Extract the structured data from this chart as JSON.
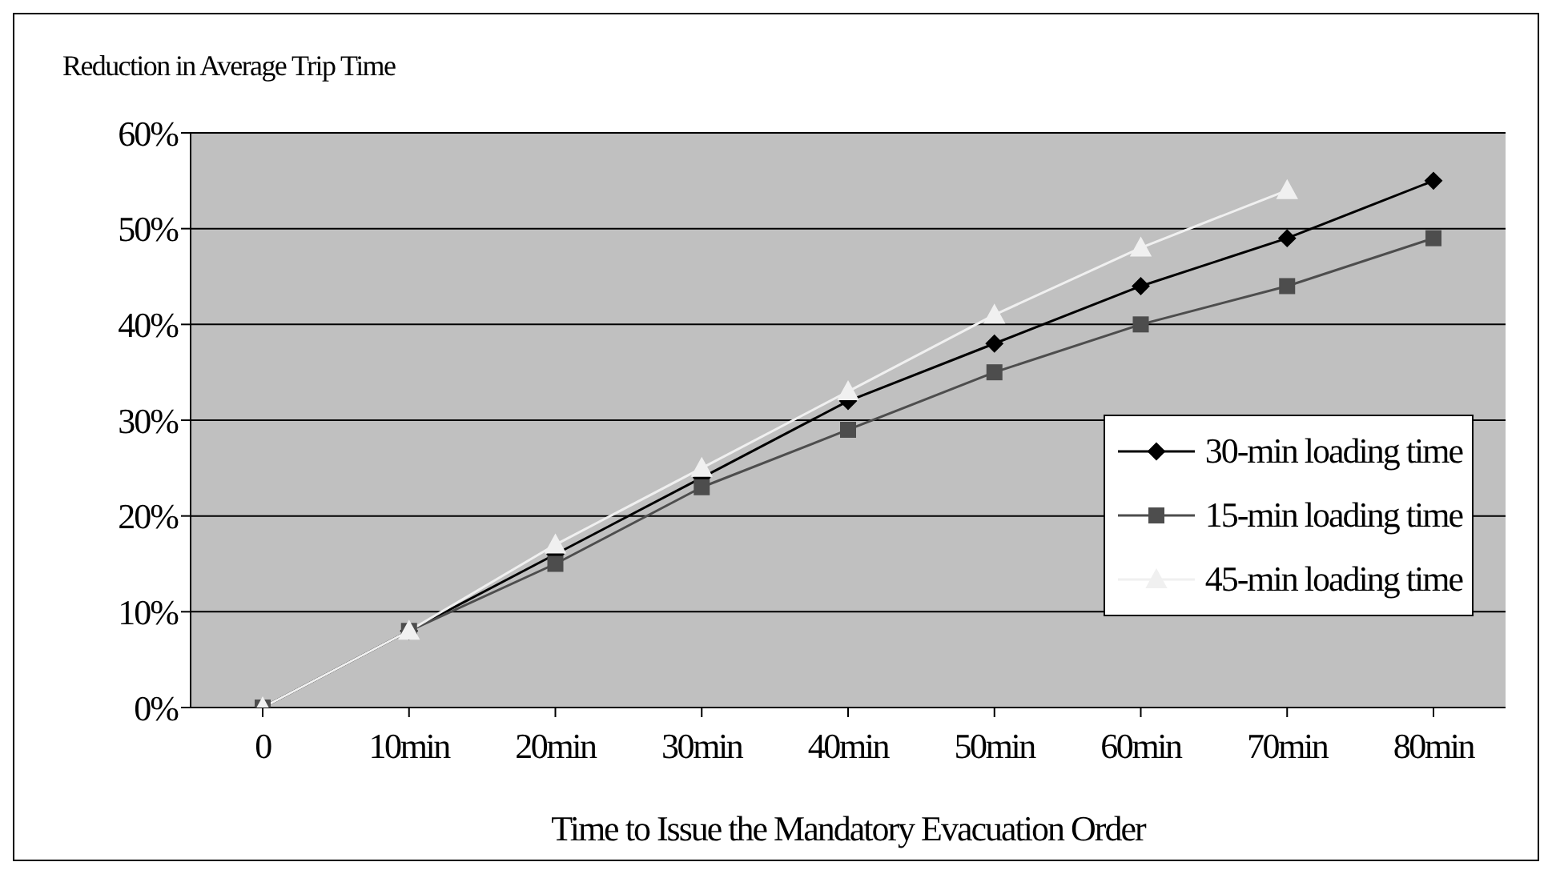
{
  "chart_data": {
    "type": "line",
    "ylabel": "Reduction in Average Trip Time",
    "xlabel": "Time to Issue the Mandatory Evacuation Order",
    "categories": [
      "0",
      "10min",
      "20min",
      "30min",
      "40min",
      "50min",
      "60min",
      "70min",
      "80min"
    ],
    "series": [
      {
        "name": "30-min loading time",
        "color": "#000000",
        "marker": "diamond",
        "values": [
          0,
          8,
          16,
          24,
          32,
          38,
          44,
          49,
          55
        ]
      },
      {
        "name": "15-min loading time",
        "color": "#4d4d4d",
        "marker": "square",
        "values": [
          0,
          8,
          15,
          23,
          29,
          35,
          40,
          44,
          49
        ]
      },
      {
        "name": "45-min loading time",
        "color": "#f0f0f0",
        "marker": "triangle",
        "values": [
          0,
          8,
          17,
          25,
          33,
          41,
          48,
          54,
          null
        ]
      }
    ],
    "ylim": [
      0,
      60
    ],
    "yticks": [
      {
        "value": 0,
        "label": "0%"
      },
      {
        "value": 10,
        "label": "10%"
      },
      {
        "value": 20,
        "label": "20%"
      },
      {
        "value": 30,
        "label": "30%"
      },
      {
        "value": 40,
        "label": "40%"
      },
      {
        "value": 50,
        "label": "50%"
      },
      {
        "value": 60,
        "label": "60%"
      }
    ],
    "grid": "y",
    "legend": "bottom right",
    "line_style": "solid"
  }
}
